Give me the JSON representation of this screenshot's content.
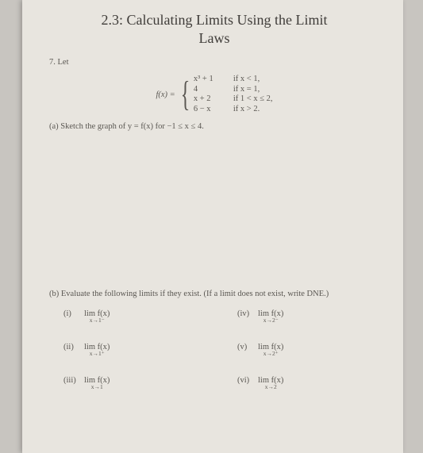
{
  "title_line1": "2.3: Calculating Limits Using the Limit",
  "title_line2": "Laws",
  "problem_number": "7. Let",
  "func_lhs": "f(x) =",
  "cases": [
    {
      "expr": "x³ + 1",
      "cond": "if x < 1,"
    },
    {
      "expr": "4",
      "cond": "if x = 1,"
    },
    {
      "expr": "x + 2",
      "cond": "if 1 < x ≤ 2,"
    },
    {
      "expr": "6 − x",
      "cond": "if x > 2."
    }
  ],
  "part_a": "(a) Sketch the graph of y = f(x) for −1 ≤ x ≤ 4.",
  "part_b": "(b) Evaluate the following limits if they exist. (If a limit does not exist, write DNE.)",
  "limits": {
    "i": {
      "label": "(i)",
      "sub": "x→1⁻",
      "expr": "lim f(x)"
    },
    "ii": {
      "label": "(ii)",
      "sub": "x→1⁺",
      "expr": "lim f(x)"
    },
    "iii": {
      "label": "(iii)",
      "sub": "x→1",
      "expr": "lim f(x)"
    },
    "iv": {
      "label": "(iv)",
      "sub": "x→2⁻",
      "expr": "lim f(x)"
    },
    "v": {
      "label": "(v)",
      "sub": "x→2⁺",
      "expr": "lim f(x)"
    },
    "vi": {
      "label": "(vi)",
      "sub": "x→2",
      "expr": "lim f(x)"
    }
  },
  "colors": {
    "outer_bg": "#c8c5c0",
    "page_bg": "#e8e5df",
    "text": "#4a4744",
    "text_light": "#5a5752"
  }
}
